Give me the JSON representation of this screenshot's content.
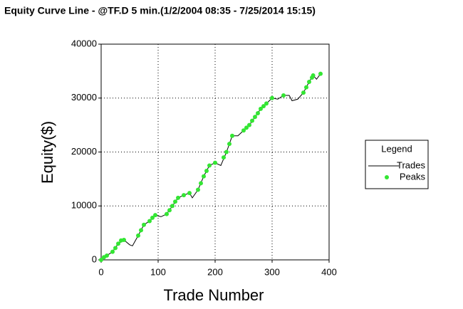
{
  "chart_data": {
    "type": "line",
    "title": "Equity Curve Line - @TF.D 5 min.(1/2/2004 08:35 - 7/25/2014 15:15)",
    "x_label": "Trade Number",
    "y_label": "Equity($)",
    "legend_title": "Legend",
    "xlim": [
      0,
      400
    ],
    "xticks": [
      0,
      100,
      200,
      300,
      400
    ],
    "ylim": [
      0,
      40000
    ],
    "yticks": [
      0,
      10000,
      20000,
      30000,
      40000
    ],
    "grid": true,
    "series": [
      {
        "name": "Trades",
        "kind": "line",
        "color": "#000000",
        "x": [
          0,
          10,
          20,
          30,
          40,
          50,
          55,
          65,
          75,
          85,
          95,
          105,
          115,
          125,
          135,
          145,
          155,
          160,
          170,
          180,
          190,
          200,
          210,
          220,
          230,
          240,
          250,
          260,
          270,
          280,
          290,
          300,
          310,
          320,
          330,
          335,
          345,
          355,
          365,
          372,
          378,
          385
        ],
        "values": [
          0,
          800,
          1500,
          3000,
          3700,
          2800,
          2600,
          4500,
          6500,
          7200,
          8300,
          8000,
          8500,
          10000,
          11500,
          12000,
          12400,
          11500,
          13000,
          15500,
          17500,
          18000,
          17500,
          20000,
          23000,
          23000,
          24000,
          25000,
          26500,
          28000,
          29000,
          30000,
          29800,
          30500,
          30500,
          29500,
          29800,
          31000,
          33000,
          34200,
          33500,
          34500
        ]
      },
      {
        "name": "Peaks",
        "kind": "scatter",
        "color": "#33e633",
        "x": [
          0,
          5,
          10,
          20,
          25,
          30,
          35,
          40,
          65,
          70,
          75,
          85,
          90,
          95,
          115,
          120,
          125,
          130,
          135,
          145,
          155,
          170,
          175,
          180,
          185,
          190,
          200,
          215,
          220,
          225,
          230,
          250,
          255,
          260,
          265,
          270,
          275,
          280,
          285,
          290,
          300,
          320,
          355,
          360,
          365,
          370,
          372,
          385
        ],
        "values": [
          0,
          500,
          800,
          1500,
          2200,
          3000,
          3600,
          3700,
          4500,
          5500,
          6500,
          7200,
          7800,
          8300,
          8500,
          9200,
          10000,
          10800,
          11500,
          12000,
          12400,
          13000,
          14200,
          15500,
          16500,
          17500,
          18000,
          19000,
          20000,
          21500,
          23000,
          24000,
          24500,
          25000,
          25800,
          26500,
          27200,
          28000,
          28500,
          29000,
          30000,
          30500,
          31000,
          32000,
          33000,
          33800,
          34200,
          34500
        ]
      }
    ]
  }
}
